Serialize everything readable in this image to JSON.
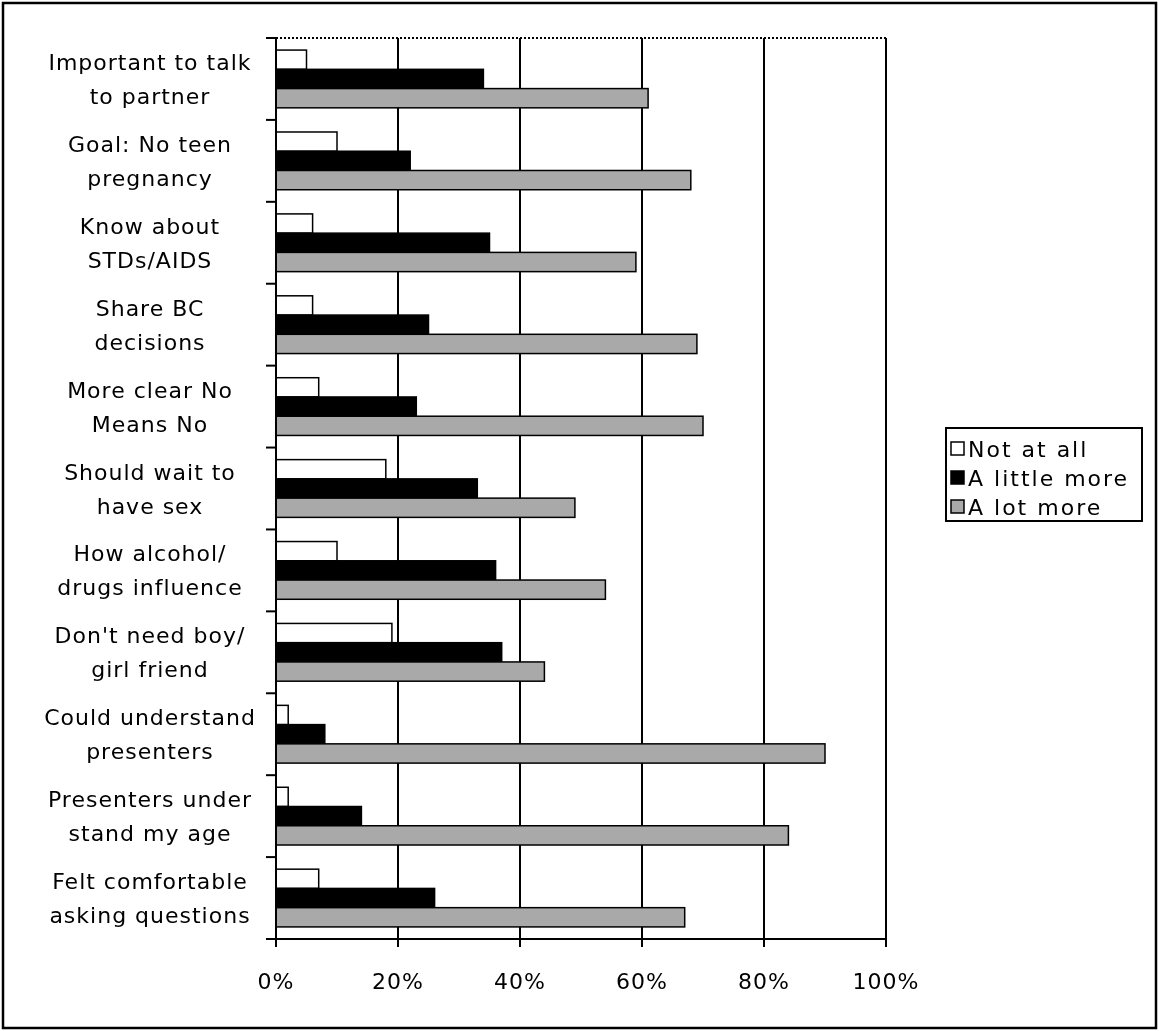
{
  "chart_data": {
    "type": "bar",
    "orientation": "horizontal",
    "categories": [
      "Important to talk\nto partner",
      "Goal: No teen\npregnancy",
      "Know about\nSTDs/AIDS",
      "Share BC\ndecisions",
      "More clear No\nMeans No",
      "Should wait to\nhave sex",
      "How alcohol/\ndrugs influence",
      "Don't need boy/\ngirl friend",
      "Could understand\npresenters",
      "Presenters under\nstand my age",
      "Felt comfortable\nasking questions"
    ],
    "series": [
      {
        "name": "Not at all",
        "color": "#ffffff",
        "values": [
          5,
          10,
          6,
          6,
          7,
          18,
          10,
          19,
          2,
          2,
          7
        ]
      },
      {
        "name": "A little more",
        "color": "#000000",
        "values": [
          34,
          22,
          35,
          25,
          23,
          33,
          36,
          37,
          8,
          14,
          26
        ]
      },
      {
        "name": "A lot more",
        "color": "#a9a9a9",
        "values": [
          61,
          68,
          59,
          69,
          70,
          49,
          54,
          44,
          90,
          84,
          67
        ]
      }
    ],
    "xlim": [
      0,
      100
    ],
    "xticks": [
      {
        "value": 0,
        "label": "0%"
      },
      {
        "value": 20,
        "label": "20%"
      },
      {
        "value": 40,
        "label": "40%"
      },
      {
        "value": 60,
        "label": "60%"
      },
      {
        "value": 80,
        "label": "80%"
      },
      {
        "value": 100,
        "label": "100%"
      }
    ],
    "grid": "x",
    "legend": "right"
  }
}
